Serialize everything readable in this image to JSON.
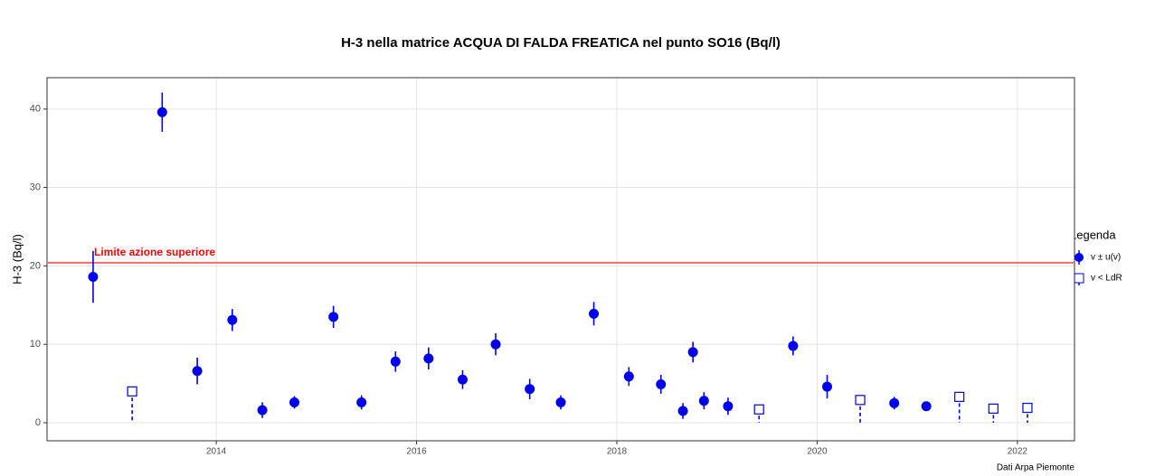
{
  "chart_data": {
    "type": "scatter",
    "title": "H-3 nella matrice ACQUA DI FALDA FREATICA nel punto SO16 (Bq/l)",
    "y_label": "H-3 (Bq/l)",
    "caption": "Dati Arpa Piemonte",
    "legend_title": "Legenda",
    "xlim": [
      2012.31,
      2022.57
    ],
    "ylim": [
      -2.3,
      44.0
    ],
    "xticks": [
      2014,
      2016,
      2018,
      2020,
      2022
    ],
    "yticks": [
      0,
      10,
      20,
      30,
      40
    ],
    "grid": true,
    "threshold": {
      "value": 20.4,
      "label": "Limite azione superiore",
      "color": "#f26b6b",
      "label_color": "#ff0000"
    },
    "series": [
      {
        "name": "v ± u(v)",
        "color": "#0000ee",
        "marker": "circle",
        "x": [
          2012.77,
          2013.46,
          2013.81,
          2014.16,
          2014.46,
          2014.78,
          2015.17,
          2015.45,
          2015.79,
          2016.12,
          2016.46,
          2016.79,
          2017.13,
          2017.44,
          2017.77,
          2018.12,
          2018.44,
          2018.66,
          2018.76,
          2018.87,
          2019.11,
          2019.76,
          2020.1,
          2020.77,
          2021.09
        ],
        "values": [
          18.6,
          39.6,
          6.6,
          13.1,
          1.6,
          2.6,
          13.5,
          2.6,
          7.8,
          8.2,
          5.5,
          10.0,
          4.3,
          2.6,
          13.9,
          5.9,
          4.9,
          1.5,
          9.0,
          2.8,
          2.1,
          9.8,
          4.6,
          2.5,
          2.1
        ],
        "errors": [
          3.3,
          2.5,
          1.7,
          1.4,
          1.0,
          0.8,
          1.4,
          0.9,
          1.3,
          1.4,
          1.2,
          1.4,
          1.3,
          0.9,
          1.5,
          1.2,
          1.2,
          1.0,
          1.3,
          1.1,
          1.1,
          1.2,
          1.5,
          0.8,
          0.4
        ]
      },
      {
        "name": "v < LdR",
        "color": "#0000ee",
        "marker": "square",
        "x": [
          2013.16,
          2019.42,
          2020.43,
          2021.42,
          2021.76,
          2022.1
        ],
        "values": [
          4.0,
          1.7,
          2.9,
          3.3,
          1.8,
          1.9
        ]
      }
    ]
  }
}
